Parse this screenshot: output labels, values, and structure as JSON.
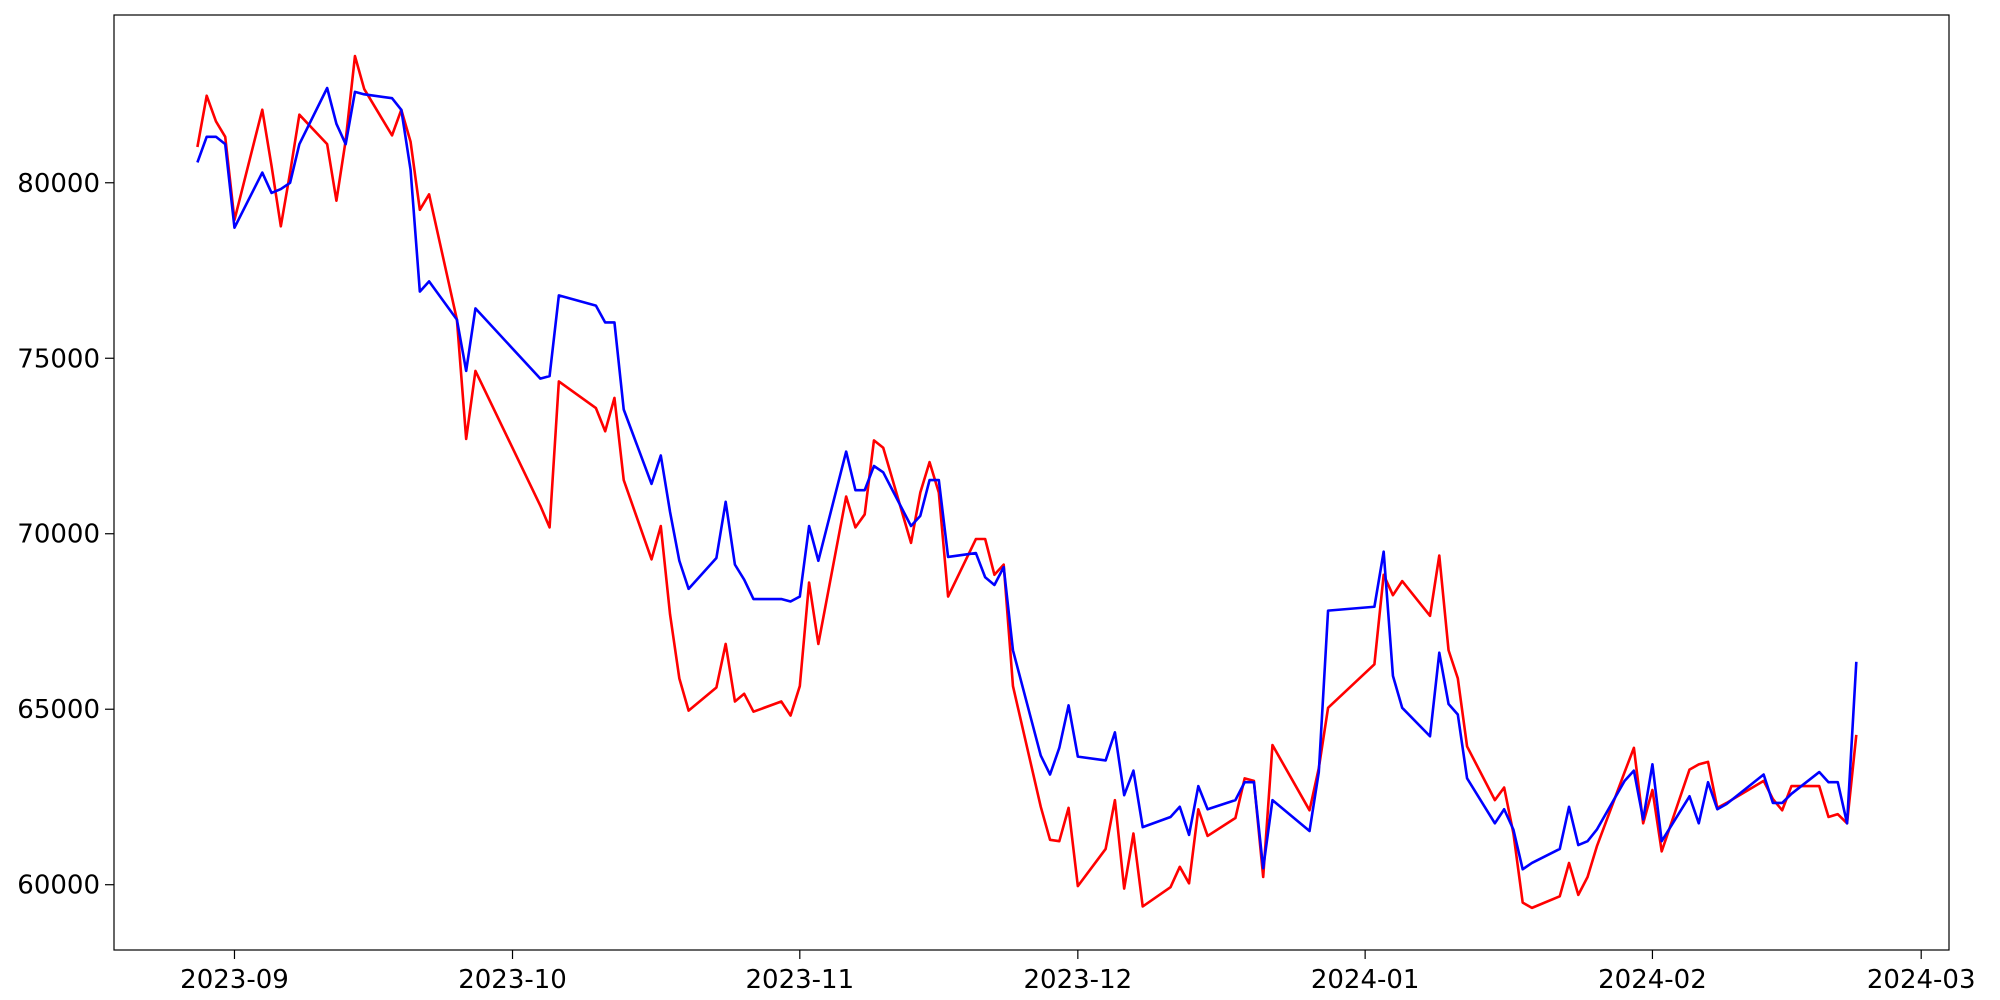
{
  "chart_data": {
    "type": "line",
    "x": [
      "2023-08-28",
      "2023-08-29",
      "2023-08-30",
      "2023-08-31",
      "2023-09-01",
      "2023-09-04",
      "2023-09-05",
      "2023-09-06",
      "2023-09-07",
      "2023-09-08",
      "2023-09-11",
      "2023-09-12",
      "2023-09-13",
      "2023-09-14",
      "2023-09-15",
      "2023-09-18",
      "2023-09-19",
      "2023-09-20",
      "2023-09-21",
      "2023-09-22",
      "2023-09-25",
      "2023-09-26",
      "2023-09-27",
      "2023-10-04",
      "2023-10-05",
      "2023-10-06",
      "2023-10-10",
      "2023-10-11",
      "2023-10-12",
      "2023-10-13",
      "2023-10-16",
      "2023-10-17",
      "2023-10-18",
      "2023-10-19",
      "2023-10-20",
      "2023-10-23",
      "2023-10-24",
      "2023-10-25",
      "2023-10-26",
      "2023-10-27",
      "2023-10-30",
      "2023-10-31",
      "2023-11-01",
      "2023-11-02",
      "2023-11-03",
      "2023-11-06",
      "2023-11-07",
      "2023-11-08",
      "2023-11-09",
      "2023-11-10",
      "2023-11-13",
      "2023-11-14",
      "2023-11-15",
      "2023-11-16",
      "2023-11-17",
      "2023-11-20",
      "2023-11-21",
      "2023-11-22",
      "2023-11-23",
      "2023-11-24",
      "2023-11-27",
      "2023-11-28",
      "2023-11-29",
      "2023-11-30",
      "2023-12-01",
      "2023-12-04",
      "2023-12-05",
      "2023-12-06",
      "2023-12-07",
      "2023-12-08",
      "2023-12-11",
      "2023-12-12",
      "2023-12-13",
      "2023-12-14",
      "2023-12-15",
      "2023-12-18",
      "2023-12-19",
      "2023-12-20",
      "2023-12-21",
      "2023-12-22",
      "2023-12-26",
      "2023-12-27",
      "2023-12-28",
      "2024-01-02",
      "2024-01-03",
      "2024-01-04",
      "2024-01-05",
      "2024-01-08",
      "2024-01-09",
      "2024-01-10",
      "2024-01-11",
      "2024-01-12",
      "2024-01-15",
      "2024-01-16",
      "2024-01-17",
      "2024-01-18",
      "2024-01-19",
      "2024-01-22",
      "2024-01-23",
      "2024-01-24",
      "2024-01-25",
      "2024-01-26",
      "2024-01-29",
      "2024-01-30",
      "2024-01-31",
      "2024-02-01",
      "2024-02-02",
      "2024-02-05",
      "2024-02-06",
      "2024-02-07",
      "2024-02-08",
      "2024-02-09",
      "2024-02-13",
      "2024-02-14",
      "2024-02-15",
      "2024-02-16",
      "2024-02-19",
      "2024-02-20",
      "2024-02-21",
      "2024-02-22",
      "2024-02-23"
    ],
    "series": [
      {
        "color": "#ff0000",
        "values": [
          81020,
          82480,
          81750,
          81310,
          78940,
          82080,
          80480,
          78760,
          80290,
          81940,
          81100,
          79490,
          81210,
          83610,
          82670,
          81350,
          82080,
          81170,
          79230,
          79670,
          76100,
          72700,
          74640,
          70800,
          70180,
          74340,
          73580,
          72920,
          73870,
          71530,
          69270,
          70220,
          67700,
          65880,
          64960,
          65620,
          66860,
          65220,
          65440,
          64930,
          65220,
          64820,
          65660,
          68610,
          66860,
          71060,
          70180,
          70550,
          72660,
          72450,
          69740,
          71170,
          72040,
          71170,
          68210,
          69850,
          69850,
          68830,
          69120,
          65660,
          62220,
          61280,
          61240,
          62190,
          59960,
          61020,
          62410,
          59890,
          61460,
          59380,
          59930,
          60510,
          60040,
          62150,
          61390,
          61900,
          63030,
          62960,
          60220,
          63980,
          62120,
          63320,
          65040,
          66280,
          68830,
          68250,
          68650,
          67660,
          69380,
          66680,
          65880,
          63940,
          62410,
          62770,
          61460,
          59490,
          59340,
          59670,
          60620,
          59710,
          60220,
          61090,
          63210,
          63900,
          61750,
          62700,
          60950,
          63280,
          63430,
          63500,
          62190,
          62330,
          62960,
          62440,
          62120,
          62810,
          62810,
          61930,
          62010,
          61750,
          64270
        ]
      },
      {
        "color": "#0000ff",
        "values": [
          80580,
          81310,
          81310,
          81100,
          78720,
          80290,
          79710,
          79820,
          80000,
          81100,
          82700,
          81680,
          81100,
          82590,
          82520,
          82410,
          82080,
          80370,
          76900,
          77190,
          76100,
          74640,
          76420,
          74420,
          74490,
          76790,
          76500,
          76020,
          76020,
          73540,
          71420,
          72230,
          70620,
          69230,
          68430,
          69310,
          70910,
          69120,
          68690,
          68140,
          68140,
          68070,
          68210,
          70220,
          69230,
          72340,
          71240,
          71240,
          71930,
          71750,
          70220,
          70510,
          71530,
          71530,
          69340,
          69450,
          68760,
          68540,
          69050,
          66680,
          63680,
          63140,
          63900,
          65110,
          63650,
          63540,
          64340,
          62550,
          63250,
          61640,
          61930,
          62220,
          61420,
          62810,
          62150,
          62410,
          62920,
          62920,
          60470,
          62410,
          61530,
          63210,
          67810,
          67920,
          69490,
          65950,
          65040,
          64230,
          66610,
          65150,
          64850,
          63030,
          61750,
          62150,
          61570,
          60440,
          60620,
          61020,
          62220,
          61130,
          61240,
          61570,
          62960,
          63250,
          61860,
          63430,
          61240,
          62520,
          61750,
          62920,
          62150,
          62300,
          63140,
          62330,
          62330,
          62590,
          63210,
          62920,
          62920,
          61750,
          66350
        ]
      }
    ],
    "xlim": [
      "2023-08-19",
      "2024-03-04"
    ],
    "xticks": [
      {
        "value": "2023-09-01",
        "label": "2023-09"
      },
      {
        "value": "2023-10-01",
        "label": "2023-10"
      },
      {
        "value": "2023-11-01",
        "label": "2023-11"
      },
      {
        "value": "2023-12-01",
        "label": "2023-12"
      },
      {
        "value": "2024-01-01",
        "label": "2024-01"
      },
      {
        "value": "2024-02-01",
        "label": "2024-02"
      },
      {
        "value": "2024-03-01",
        "label": "2024-03"
      }
    ],
    "ylim": [
      58140,
      84780
    ],
    "yticks": [
      60000,
      65000,
      70000,
      75000,
      80000
    ],
    "grid": false
  }
}
